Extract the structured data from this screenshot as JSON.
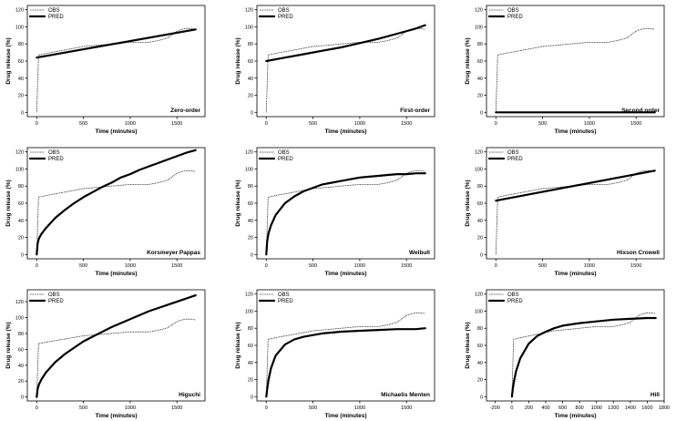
{
  "chart_data": [
    {
      "type": "line",
      "title": "Zero-order",
      "xlabel": "Time (minutes)",
      "ylabel": "Drug release (%)",
      "xlim": [
        -100,
        1800
      ],
      "ylim": [
        -5,
        125
      ],
      "xticks": [
        0,
        500,
        1000,
        1500
      ],
      "yticks": [
        0,
        20,
        40,
        60,
        80,
        100,
        120
      ],
      "legend": [
        "OBS",
        "PRED"
      ],
      "legend_position": "top-left",
      "series": [
        {
          "name": "OBS",
          "x": [
            0,
            20,
            100,
            200,
            300,
            400,
            500,
            600,
            700,
            800,
            900,
            1000,
            1100,
            1200,
            1300,
            1400,
            1450,
            1500,
            1550,
            1600,
            1650,
            1700
          ],
          "y": [
            0,
            67,
            69,
            71,
            73,
            75,
            77,
            78,
            79,
            80,
            81,
            82,
            82,
            82,
            84,
            87,
            91,
            95,
            97,
            98,
            98,
            97
          ]
        },
        {
          "name": "PRED",
          "x": [
            0,
            1700
          ],
          "y": [
            64,
            97
          ]
        }
      ]
    },
    {
      "type": "line",
      "title": "First-order",
      "xlabel": "Time (minutes)",
      "ylabel": "Drug release (%)",
      "xlim": [
        -100,
        1800
      ],
      "ylim": [
        -5,
        125
      ],
      "xticks": [
        0,
        500,
        1000,
        1500
      ],
      "yticks": [
        0,
        20,
        40,
        60,
        80,
        100,
        120
      ],
      "legend": [
        "OBS",
        "PRED"
      ],
      "legend_position": "top-left",
      "series": [
        {
          "name": "OBS",
          "x": [
            0,
            20,
            100,
            200,
            300,
            400,
            500,
            600,
            700,
            800,
            900,
            1000,
            1100,
            1200,
            1300,
            1400,
            1450,
            1500,
            1550,
            1600,
            1650,
            1700
          ],
          "y": [
            0,
            67,
            69,
            71,
            73,
            75,
            77,
            78,
            79,
            80,
            81,
            82,
            82,
            82,
            84,
            87,
            91,
            95,
            97,
            98,
            98,
            97
          ]
        },
        {
          "name": "PRED",
          "x": [
            0,
            200,
            400,
            600,
            800,
            1000,
            1200,
            1400,
            1600,
            1700
          ],
          "y": [
            60,
            64,
            68,
            72,
            76,
            81,
            86,
            92,
            98,
            102
          ]
        }
      ]
    },
    {
      "type": "line",
      "title": "Second order",
      "xlabel": "Time (minutes)",
      "ylabel": "Drug release (%)",
      "xlim": [
        -100,
        1800
      ],
      "ylim": [
        -5,
        125
      ],
      "xticks": [
        0,
        500,
        1000,
        1500
      ],
      "yticks": [
        0,
        20,
        40,
        60,
        80,
        100,
        120
      ],
      "legend": [
        "OBS",
        "PRED"
      ],
      "legend_position": "top-left",
      "series": [
        {
          "name": "OBS",
          "x": [
            0,
            20,
            100,
            200,
            300,
            400,
            500,
            600,
            700,
            800,
            900,
            1000,
            1100,
            1200,
            1300,
            1400,
            1450,
            1500,
            1550,
            1600,
            1650,
            1700
          ],
          "y": [
            0,
            67,
            69,
            71,
            73,
            75,
            77,
            78,
            79,
            80,
            81,
            82,
            82,
            82,
            84,
            87,
            91,
            95,
            97,
            98,
            98,
            97
          ]
        },
        {
          "name": "PRED",
          "x": [
            0,
            1700
          ],
          "y": [
            0,
            0
          ]
        }
      ]
    },
    {
      "type": "line",
      "title": "Korsmeyer Pappas",
      "xlabel": "Time (minutes)",
      "ylabel": "Drug release (%)",
      "xlim": [
        -100,
        1800
      ],
      "ylim": [
        -5,
        125
      ],
      "xticks": [
        0,
        500,
        1000,
        1500
      ],
      "yticks": [
        0,
        20,
        40,
        60,
        80,
        100,
        120
      ],
      "legend": [
        "OBS",
        "PRED"
      ],
      "legend_position": "top-left",
      "series": [
        {
          "name": "OBS",
          "x": [
            0,
            20,
            100,
            200,
            300,
            400,
            500,
            600,
            700,
            800,
            900,
            1000,
            1100,
            1200,
            1300,
            1400,
            1450,
            1500,
            1550,
            1600,
            1650,
            1700
          ],
          "y": [
            0,
            67,
            69,
            71,
            73,
            75,
            77,
            78,
            79,
            80,
            81,
            82,
            82,
            82,
            84,
            87,
            91,
            95,
            97,
            98,
            98,
            97
          ]
        },
        {
          "name": "PRED",
          "x": [
            0,
            10,
            25,
            50,
            100,
            200,
            300,
            400,
            500,
            600,
            700,
            800,
            900,
            1000,
            1100,
            1200,
            1300,
            1400,
            1500,
            1600,
            1700
          ],
          "y": [
            0,
            13,
            19,
            24,
            31,
            43,
            52,
            60,
            67,
            73,
            79,
            84,
            90,
            94,
            99,
            103,
            107,
            111,
            115,
            119,
            122
          ]
        }
      ]
    },
    {
      "type": "line",
      "title": "Weibull",
      "xlabel": "Time (minutes)",
      "ylabel": "Drug release (%)",
      "xlim": [
        -100,
        1800
      ],
      "ylim": [
        -5,
        125
      ],
      "xticks": [
        0,
        500,
        1000,
        1500
      ],
      "yticks": [
        0,
        20,
        40,
        60,
        80,
        100,
        120
      ],
      "legend": [
        "OBS",
        "PRED"
      ],
      "legend_position": "top-left",
      "series": [
        {
          "name": "OBS",
          "x": [
            0,
            20,
            100,
            200,
            300,
            400,
            500,
            600,
            700,
            800,
            900,
            1000,
            1100,
            1200,
            1300,
            1400,
            1450,
            1500,
            1550,
            1600,
            1650,
            1700
          ],
          "y": [
            0,
            67,
            69,
            71,
            73,
            75,
            77,
            78,
            79,
            80,
            81,
            82,
            82,
            82,
            84,
            87,
            91,
            95,
            97,
            98,
            98,
            97
          ]
        },
        {
          "name": "PRED",
          "x": [
            0,
            10,
            25,
            50,
            100,
            200,
            300,
            400,
            500,
            600,
            700,
            800,
            900,
            1000,
            1100,
            1200,
            1300,
            1400,
            1500,
            1600,
            1700
          ],
          "y": [
            0,
            16,
            25,
            34,
            46,
            60,
            68,
            74,
            78,
            82,
            84,
            86,
            88,
            90,
            91,
            92,
            93,
            94,
            94,
            95,
            95
          ]
        }
      ]
    },
    {
      "type": "line",
      "title": "Hixson Crowell",
      "xlabel": "Time (minutes)",
      "ylabel": "Drug release (%)",
      "xlim": [
        -100,
        1800
      ],
      "ylim": [
        -5,
        125
      ],
      "xticks": [
        0,
        500,
        1000,
        1500
      ],
      "yticks": [
        0,
        20,
        40,
        60,
        80,
        100,
        120
      ],
      "legend": [
        "OBS",
        "PRED"
      ],
      "legend_position": "top-left",
      "series": [
        {
          "name": "OBS",
          "x": [
            0,
            20,
            100,
            200,
            300,
            400,
            500,
            600,
            700,
            800,
            900,
            1000,
            1100,
            1200,
            1300,
            1400,
            1450,
            1500,
            1550,
            1600,
            1650,
            1700
          ],
          "y": [
            0,
            67,
            69,
            71,
            73,
            75,
            77,
            78,
            79,
            80,
            81,
            82,
            82,
            82,
            84,
            87,
            91,
            95,
            97,
            98,
            98,
            97
          ]
        },
        {
          "name": "PRED",
          "x": [
            0,
            1700
          ],
          "y": [
            63,
            98
          ]
        }
      ]
    },
    {
      "type": "line",
      "title": "Higuchi",
      "xlabel": "Time (minutes)",
      "ylabel": "Drug release (%)",
      "xlim": [
        -100,
        1800
      ],
      "ylim": [
        -5,
        135
      ],
      "xticks": [
        0,
        500,
        1000,
        1500
      ],
      "yticks": [
        0,
        20,
        40,
        60,
        80,
        100,
        120
      ],
      "legend": [
        "OBS",
        "PRED"
      ],
      "legend_position": "top-left",
      "series": [
        {
          "name": "OBS",
          "x": [
            0,
            20,
            100,
            200,
            300,
            400,
            500,
            600,
            700,
            800,
            900,
            1000,
            1100,
            1200,
            1300,
            1400,
            1450,
            1500,
            1550,
            1600,
            1650,
            1700
          ],
          "y": [
            0,
            67,
            69,
            71,
            73,
            75,
            77,
            78,
            79,
            80,
            81,
            82,
            82,
            82,
            84,
            87,
            91,
            95,
            97,
            98,
            98,
            97
          ]
        },
        {
          "name": "PRED",
          "x": [
            0,
            10,
            25,
            50,
            100,
            200,
            300,
            400,
            500,
            600,
            700,
            800,
            900,
            1000,
            1100,
            1200,
            1300,
            1400,
            1500,
            1600,
            1700
          ],
          "y": [
            0,
            10,
            16,
            22,
            31,
            44,
            54,
            62,
            70,
            76,
            82,
            88,
            93,
            98,
            103,
            108,
            112,
            116,
            120,
            124,
            128
          ]
        }
      ]
    },
    {
      "type": "line",
      "title": "Michaelis Menten",
      "xlabel": "Time (minutes)",
      "ylabel": "Drug release (%)",
      "xlim": [
        -100,
        1800
      ],
      "ylim": [
        -5,
        125
      ],
      "xticks": [
        0,
        500,
        1000,
        1500
      ],
      "yticks": [
        0,
        20,
        40,
        60,
        80,
        100,
        120
      ],
      "legend": [
        "OBS",
        "PRED"
      ],
      "legend_position": "top-left",
      "series": [
        {
          "name": "OBS",
          "x": [
            0,
            20,
            100,
            200,
            300,
            400,
            500,
            600,
            700,
            800,
            900,
            1000,
            1100,
            1200,
            1300,
            1400,
            1450,
            1500,
            1550,
            1600,
            1650,
            1700
          ],
          "y": [
            0,
            67,
            69,
            71,
            73,
            75,
            77,
            78,
            79,
            80,
            81,
            82,
            82,
            82,
            84,
            87,
            91,
            95,
            97,
            98,
            98,
            97
          ]
        },
        {
          "name": "PRED",
          "x": [
            0,
            10,
            25,
            50,
            100,
            200,
            300,
            400,
            500,
            600,
            800,
            1000,
            1200,
            1400,
            1600,
            1700
          ],
          "y": [
            0,
            9,
            20,
            33,
            48,
            61,
            67,
            70,
            72,
            74,
            76,
            77,
            78,
            79,
            79,
            80
          ]
        }
      ]
    },
    {
      "type": "line",
      "title": "Hill",
      "xlabel": "Time (minutes)",
      "ylabel": "Drug release (%)",
      "xlim": [
        -300,
        1800
      ],
      "ylim": [
        -5,
        125
      ],
      "xticks": [
        -200,
        0,
        200,
        400,
        600,
        800,
        1000,
        1200,
        1400,
        1600,
        1800
      ],
      "yticks": [
        0,
        20,
        40,
        60,
        80,
        100,
        120
      ],
      "legend": [
        "OBS",
        "PRED"
      ],
      "legend_position": "top-left",
      "series": [
        {
          "name": "OBS",
          "x": [
            0,
            20,
            100,
            200,
            300,
            400,
            500,
            600,
            700,
            800,
            900,
            1000,
            1100,
            1200,
            1300,
            1400,
            1450,
            1500,
            1550,
            1600,
            1650,
            1700
          ],
          "y": [
            0,
            67,
            69,
            71,
            73,
            75,
            77,
            78,
            79,
            80,
            81,
            82,
            82,
            82,
            84,
            87,
            91,
            95,
            97,
            98,
            98,
            97
          ]
        },
        {
          "name": "PRED",
          "x": [
            0,
            10,
            25,
            50,
            100,
            200,
            300,
            400,
            500,
            600,
            800,
            1000,
            1200,
            1400,
            1600,
            1700
          ],
          "y": [
            0,
            9,
            18,
            30,
            45,
            62,
            71,
            76,
            80,
            83,
            86,
            88,
            90,
            91,
            92,
            92
          ]
        }
      ]
    }
  ]
}
